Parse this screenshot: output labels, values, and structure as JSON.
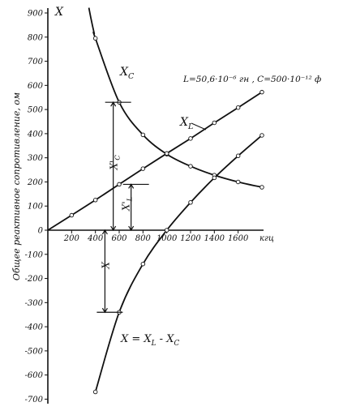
{
  "chart_data": {
    "type": "line",
    "ylabel": "Общее реактивное сопротивление, ом",
    "y_axis_symbol": "X",
    "x_unit": "кгц",
    "params_text": "L=50,6·10⁻⁶ гн ,  C=500·10⁻¹² ф",
    "xlim": [
      0,
      1800
    ],
    "ylim": [
      -700,
      900
    ],
    "x_ticks": [
      200,
      400,
      600,
      800,
      1000,
      1200,
      1400,
      1600
    ],
    "y_ticks": [
      900,
      800,
      700,
      600,
      500,
      400,
      300,
      200,
      100,
      0,
      -100,
      -200,
      -300,
      -400,
      -500,
      -600,
      -700
    ],
    "series": [
      {
        "name": "X_C",
        "label": "X",
        "sub": "C",
        "x": [
          400,
          600,
          800,
          1000,
          1200,
          1400,
          1600,
          1800
        ],
        "y": [
          795,
          530,
          395,
          315,
          265,
          228,
          200,
          178
        ],
        "curve_from": 345
      },
      {
        "name": "X_L",
        "label": "X",
        "sub": "L",
        "x": [
          0,
          200,
          400,
          600,
          800,
          1000,
          1200,
          1400,
          1600,
          1800
        ],
        "y": [
          0,
          62,
          125,
          190,
          255,
          318,
          380,
          445,
          508,
          572
        ]
      },
      {
        "name": "X = X_L - X_C",
        "label": "X = X",
        "sub": "L",
        "label2": " - X",
        "sub2": "C",
        "x": [
          400,
          600,
          800,
          1000,
          1200,
          1400,
          1600,
          1800
        ],
        "y": [
          -670,
          -340,
          -140,
          0,
          115,
          217,
          308,
          393
        ]
      }
    ],
    "annotations": {
      "xc_prime": {
        "label": "X",
        "prime": "'",
        "sub": "C",
        "x": 550,
        "from": 0,
        "to": 530
      },
      "xl_prime": {
        "label": "X",
        "prime": "'",
        "sub": "L",
        "x": 700,
        "from": 0,
        "to": 190
      },
      "x_minus": {
        "label": "X",
        "x": 480,
        "from": 0,
        "to": -340
      }
    }
  }
}
